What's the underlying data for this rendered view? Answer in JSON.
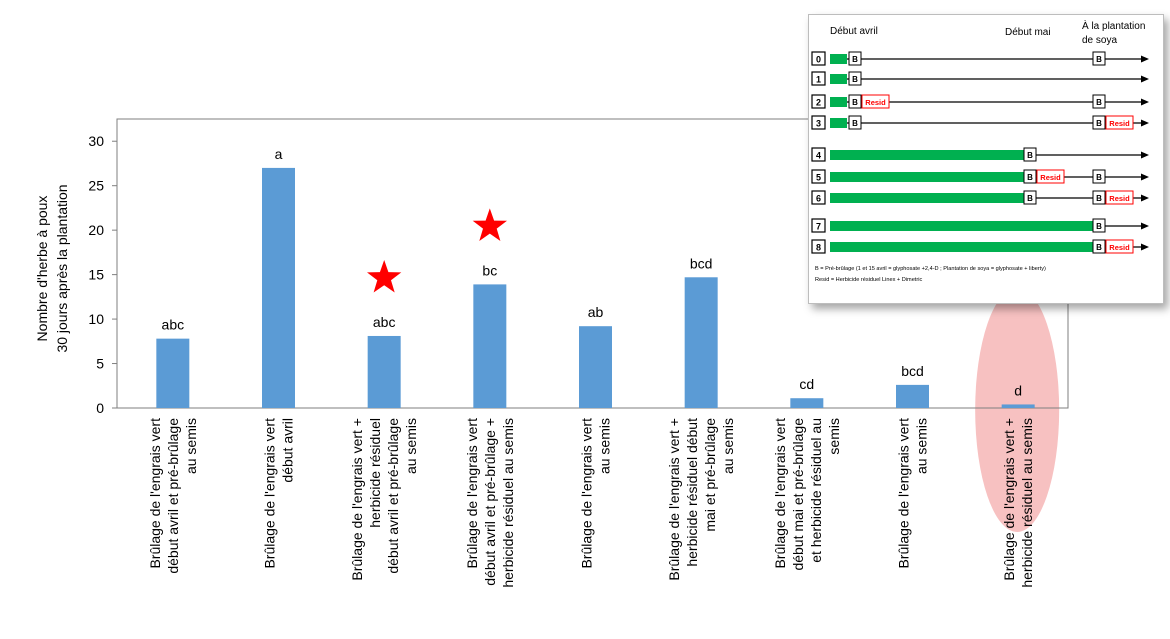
{
  "chart_data": {
    "type": "bar",
    "ylabel_line1": "Nombre d'herbe à poux",
    "ylabel_line2": "30 jours après la plantation",
    "ylim": [
      0,
      32.5
    ],
    "yticks": [
      0,
      5,
      10,
      15,
      20,
      25,
      30
    ],
    "grid": false,
    "bar_color": "#5b9bd5",
    "star_color": "#ff0000",
    "highlight_color": "#f4a6a6",
    "categories": [
      [
        "Brûlage de l'engrais vert",
        "début avril et pré-brûlage",
        "au semis"
      ],
      [
        "Brûlage de l'engrais vert",
        "début avril"
      ],
      [
        "Brûlage de l'engrais vert +",
        "herbicide résiduel",
        "début avril et pré-brûlage",
        "au semis"
      ],
      [
        "Brûlage de l'engrais vert",
        "début avril et pré-brûlage +",
        "herbicide résiduel au semis"
      ],
      [
        "Brûlage de l'engrais vert",
        "au semis"
      ],
      [
        "Brûlage de l'engrais vert +",
        "herbicide résiduel début",
        "mai et  pré-brûlage",
        "au semis"
      ],
      [
        "Brûlage de l'engrais vert",
        "début mai et pré-brûlage",
        "et herbicide résiduel au",
        "semis"
      ],
      [
        "Brûlage de l'engrais vert",
        "au semis"
      ],
      [
        "Brûlage de l'engrais vert +",
        "herbicide résiduel au semis"
      ]
    ],
    "values": [
      7.8,
      27,
      8.1,
      13.9,
      9.2,
      14.7,
      1.1,
      2.6,
      0.4
    ],
    "letters": [
      "abc",
      "a",
      "abc",
      "bc",
      "ab",
      "bcd",
      "cd",
      "bcd",
      "d"
    ],
    "stars": [
      2,
      3
    ],
    "highlighted": [
      8
    ]
  },
  "inset": {
    "headers": [
      "Début avril",
      "Début mai",
      "À la plantation",
      "de soya"
    ],
    "green": "#00b050",
    "resid_color": "#ff0000",
    "rows": [
      {
        "id": "0",
        "green_to": "early",
        "b": [
          "april",
          "plant"
        ],
        "resid": []
      },
      {
        "id": "1",
        "green_to": "early",
        "b": [
          "april"
        ],
        "resid": []
      },
      {
        "id": "2",
        "green_to": "early",
        "b": [
          "april",
          "plant"
        ],
        "resid": [
          "april"
        ]
      },
      {
        "id": "3",
        "green_to": "early",
        "b": [
          "april",
          "plant"
        ],
        "resid": [
          "plant"
        ]
      },
      {
        "id": "4",
        "green_to": "may",
        "b": [
          "may"
        ],
        "resid": []
      },
      {
        "id": "5",
        "green_to": "may",
        "b": [
          "may",
          "plant"
        ],
        "resid": [
          "may"
        ]
      },
      {
        "id": "6",
        "green_to": "may",
        "b": [
          "may",
          "plant"
        ],
        "resid": [
          "plant"
        ]
      },
      {
        "id": "7",
        "green_to": "plant",
        "b": [
          "plant"
        ],
        "resid": []
      },
      {
        "id": "8",
        "green_to": "plant",
        "b": [
          "plant"
        ],
        "resid": [
          "plant"
        ]
      }
    ],
    "b_label": "B",
    "resid_label": "Resid",
    "notes": [
      "B = Pré-brûlage (1 et 15 avril = glyphosate +2,4-D ; Plantation de soya = glyphosate + liberty)",
      "Resid = Herbicide résiduel Linex + Dimetric"
    ]
  }
}
